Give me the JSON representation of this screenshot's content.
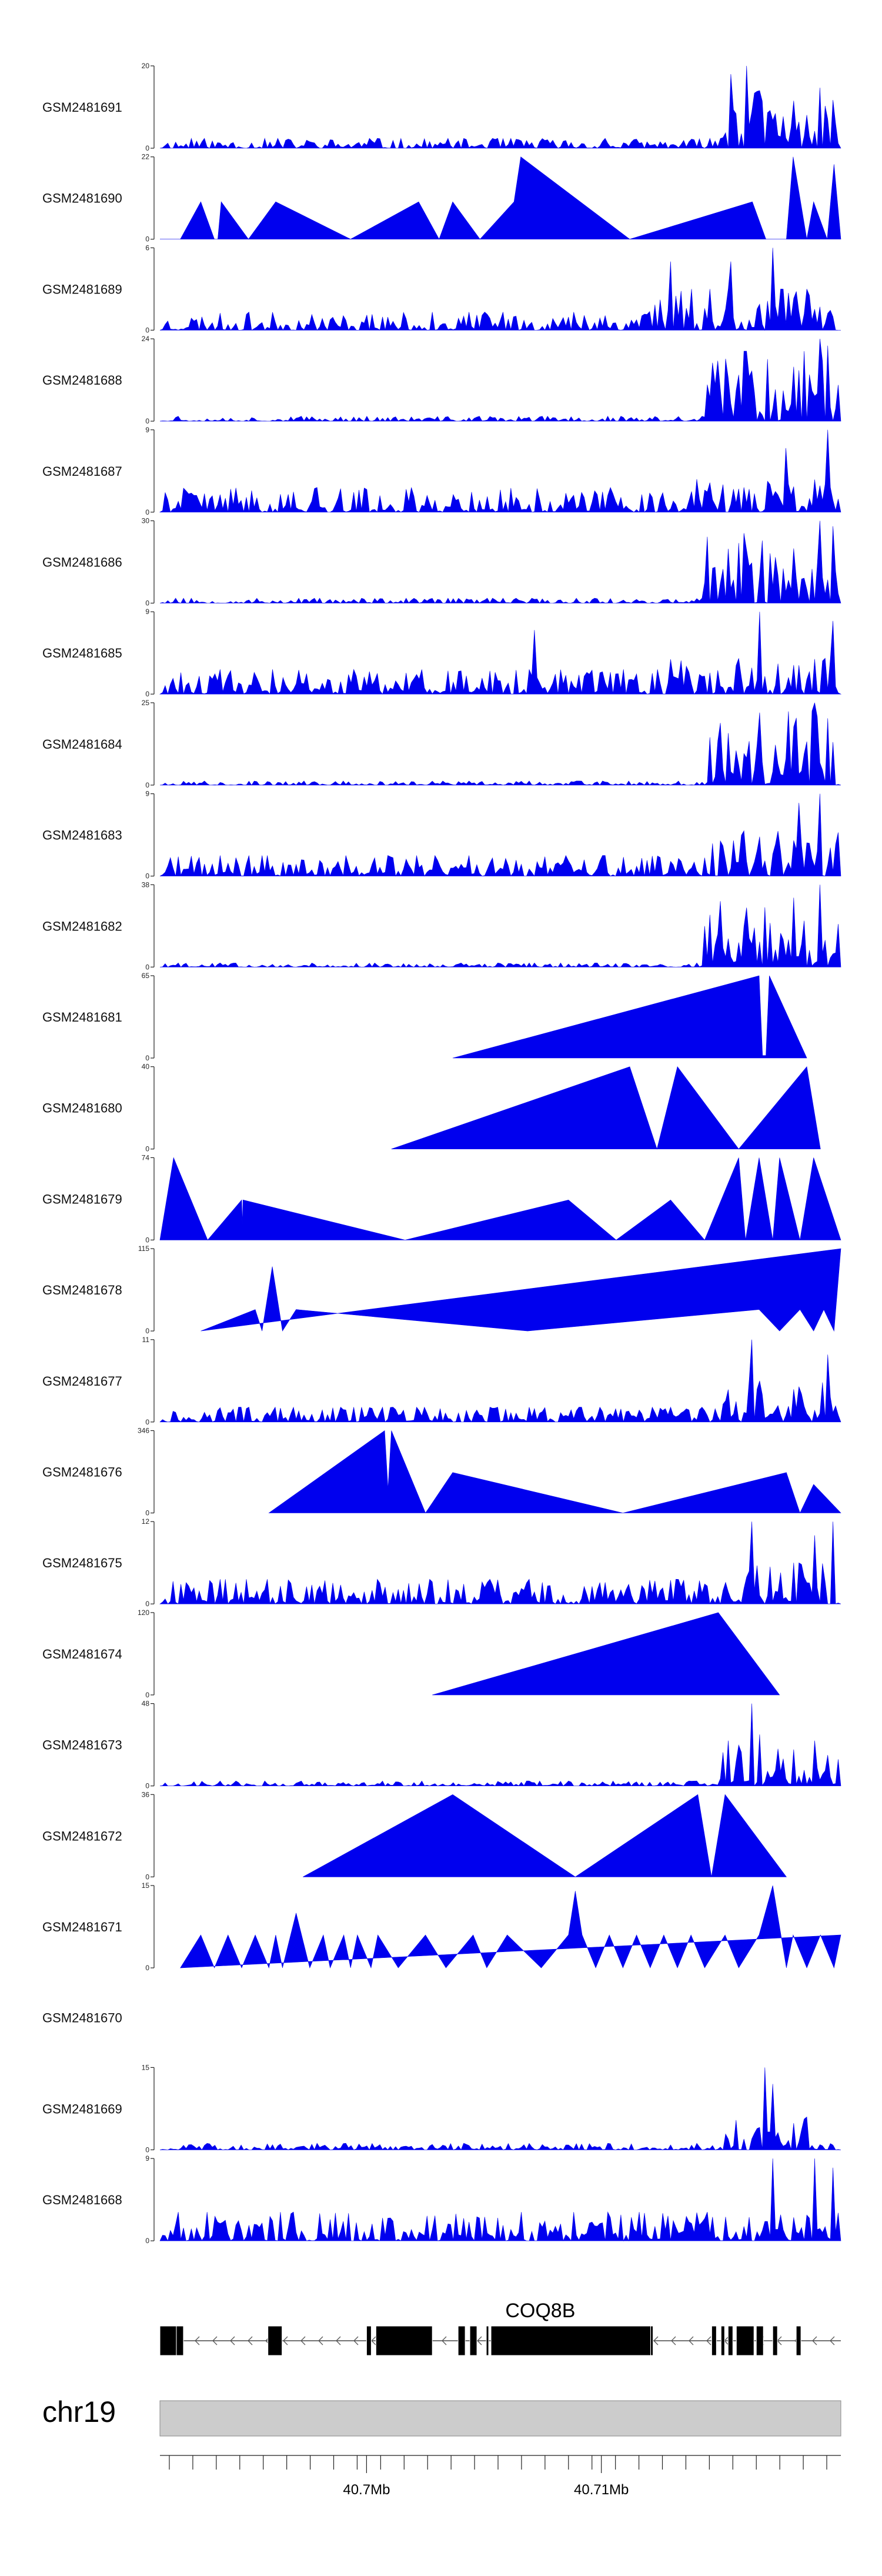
{
  "chart_data": {
    "type": "area",
    "title": "",
    "x_range": [
      40688000,
      40717000
    ],
    "tracks": [
      {
        "name": "GSM2481691",
        "ymax": 20,
        "style": "dense",
        "seed": 11,
        "base": 0.12,
        "hot": [
          [
            0.82,
            1.0,
            0.75
          ]
        ],
        "peaks": [
          [
            0.86,
            20
          ],
          [
            0.84,
            18
          ],
          [
            0.88,
            14
          ]
        ]
      },
      {
        "name": "GSM2481690",
        "ymax": 22,
        "style": "sparse",
        "points": [
          [
            0,
            0
          ],
          [
            0.03,
            0
          ],
          [
            0.06,
            10
          ],
          [
            0.08,
            0
          ],
          [
            0.085,
            0
          ],
          [
            0.09,
            10
          ],
          [
            0.13,
            0
          ],
          [
            0.17,
            10
          ],
          [
            0.28,
            0
          ],
          [
            0.38,
            10
          ],
          [
            0.41,
            0
          ],
          [
            0.43,
            10
          ],
          [
            0.47,
            0
          ],
          [
            0.52,
            10
          ],
          [
            0.53,
            22
          ],
          [
            0.69,
            0
          ],
          [
            0.87,
            10
          ],
          [
            0.89,
            0
          ],
          [
            0.92,
            0
          ],
          [
            0.93,
            22
          ],
          [
            0.95,
            0
          ],
          [
            0.96,
            10
          ],
          [
            0.98,
            0
          ],
          [
            0.99,
            20
          ],
          [
            1.0,
            0
          ]
        ]
      },
      {
        "name": "GSM2481689",
        "ymax": 6,
        "style": "dense",
        "seed": 23,
        "base": 0.22,
        "hot": [
          [
            0.7,
            1.0,
            0.5
          ]
        ],
        "peaks": [
          [
            0.9,
            6
          ],
          [
            0.75,
            5
          ],
          [
            0.84,
            5
          ]
        ]
      },
      {
        "name": "GSM2481688",
        "ymax": 24,
        "style": "dense",
        "seed": 37,
        "base": 0.06,
        "hot": [
          [
            0.8,
            1.0,
            0.85
          ]
        ],
        "peaks": [
          [
            0.97,
            24
          ],
          [
            0.98,
            22
          ]
        ]
      },
      {
        "name": "GSM2481687",
        "ymax": 9,
        "style": "dense",
        "seed": 41,
        "base": 0.3,
        "hot": [
          [
            0.75,
            1.0,
            0.4
          ]
        ],
        "peaks": [
          [
            0.98,
            9
          ],
          [
            0.92,
            7
          ]
        ]
      },
      {
        "name": "GSM2481686",
        "ymax": 30,
        "style": "dense",
        "seed": 53,
        "base": 0.06,
        "hot": [
          [
            0.8,
            1.0,
            0.85
          ]
        ],
        "peaks": [
          [
            0.97,
            30
          ],
          [
            0.99,
            28
          ]
        ]
      },
      {
        "name": "GSM2481685",
        "ymax": 9,
        "style": "dense",
        "seed": 61,
        "base": 0.3,
        "hot": [
          [
            0.75,
            1.0,
            0.45
          ]
        ],
        "peaks": [
          [
            0.88,
            9
          ],
          [
            0.55,
            7
          ],
          [
            0.99,
            8
          ]
        ]
      },
      {
        "name": "GSM2481684",
        "ymax": 25,
        "style": "dense",
        "seed": 67,
        "base": 0.05,
        "hot": [
          [
            0.8,
            1.0,
            0.9
          ]
        ],
        "peaks": [
          [
            0.96,
            25
          ],
          [
            0.88,
            22
          ]
        ]
      },
      {
        "name": "GSM2481683",
        "ymax": 9,
        "style": "dense",
        "seed": 71,
        "base": 0.25,
        "hot": [
          [
            0.8,
            1.0,
            0.55
          ]
        ],
        "peaks": [
          [
            0.97,
            9
          ],
          [
            0.94,
            8
          ]
        ]
      },
      {
        "name": "GSM2481682",
        "ymax": 38,
        "style": "dense",
        "seed": 79,
        "base": 0.05,
        "hot": [
          [
            0.8,
            1.0,
            0.8
          ]
        ],
        "peaks": [
          [
            0.97,
            38
          ],
          [
            0.93,
            32
          ]
        ]
      },
      {
        "name": "GSM2481681",
        "ymax": 65,
        "style": "sparse",
        "points": [
          [
            0.43,
            0
          ],
          [
            0.88,
            65
          ],
          [
            0.885,
            2
          ],
          [
            0.89,
            2
          ],
          [
            0.895,
            65
          ],
          [
            0.95,
            0
          ]
        ]
      },
      {
        "name": "GSM2481680",
        "ymax": 40,
        "style": "sparse",
        "points": [
          [
            0.34,
            0
          ],
          [
            0.69,
            40
          ],
          [
            0.73,
            0
          ],
          [
            0.76,
            40
          ],
          [
            0.85,
            0
          ],
          [
            0.95,
            40
          ],
          [
            0.97,
            0
          ]
        ]
      },
      {
        "name": "GSM2481679",
        "ymax": 74,
        "style": "sparse",
        "points": [
          [
            0,
            0
          ],
          [
            0.02,
            74
          ],
          [
            0.07,
            0
          ],
          [
            0.12,
            36
          ],
          [
            0.121,
            15
          ],
          [
            0.122,
            36
          ],
          [
            0.36,
            0
          ],
          [
            0.6,
            36
          ],
          [
            0.67,
            0
          ],
          [
            0.75,
            36
          ],
          [
            0.8,
            0
          ],
          [
            0.85,
            74
          ],
          [
            0.86,
            0
          ],
          [
            0.88,
            74
          ],
          [
            0.9,
            0
          ],
          [
            0.91,
            74
          ],
          [
            0.94,
            0
          ],
          [
            0.96,
            74
          ],
          [
            1.0,
            0
          ]
        ]
      },
      {
        "name": "GSM2481678",
        "ymax": 115,
        "style": "sparse",
        "points": [
          [
            0.06,
            0
          ],
          [
            0.14,
            30
          ],
          [
            0.15,
            0
          ],
          [
            0.165,
            90
          ],
          [
            0.18,
            0
          ],
          [
            0.2,
            30
          ],
          [
            0.54,
            0
          ],
          [
            0.88,
            30
          ],
          [
            0.91,
            0
          ],
          [
            0.94,
            30
          ],
          [
            0.96,
            0
          ],
          [
            0.975,
            30
          ],
          [
            0.99,
            0
          ],
          [
            1.0,
            115
          ]
        ]
      },
      {
        "name": "GSM2481677",
        "ymax": 11,
        "style": "dense",
        "seed": 97,
        "base": 0.18,
        "hot": [
          [
            0.82,
            1.0,
            0.5
          ]
        ],
        "peaks": [
          [
            0.87,
            11
          ],
          [
            0.98,
            9
          ]
        ]
      },
      {
        "name": "GSM2481676",
        "ymax": 346,
        "style": "sparse",
        "points": [
          [
            0.16,
            0
          ],
          [
            0.33,
            346
          ],
          [
            0.335,
            100
          ],
          [
            0.34,
            346
          ],
          [
            0.39,
            0
          ],
          [
            0.43,
            170
          ],
          [
            0.68,
            0
          ],
          [
            0.92,
            170
          ],
          [
            0.94,
            0
          ],
          [
            0.96,
            120
          ],
          [
            1.0,
            0
          ]
        ]
      },
      {
        "name": "GSM2481675",
        "ymax": 12,
        "style": "dense",
        "seed": 109,
        "base": 0.3,
        "hot": [
          [
            0.85,
            1.0,
            0.5
          ]
        ],
        "peaks": [
          [
            0.87,
            12
          ],
          [
            0.99,
            12
          ],
          [
            0.96,
            10
          ]
        ]
      },
      {
        "name": "GSM2481674",
        "ymax": 120,
        "style": "sparse",
        "points": [
          [
            0.4,
            0
          ],
          [
            0.82,
            120
          ],
          [
            0.91,
            0
          ]
        ]
      },
      {
        "name": "GSM2481673",
        "ymax": 48,
        "style": "dense",
        "seed": 127,
        "base": 0.06,
        "hot": [
          [
            0.82,
            1.0,
            0.55
          ]
        ],
        "peaks": [
          [
            0.87,
            48
          ],
          [
            0.88,
            30
          ]
        ]
      },
      {
        "name": "GSM2481672",
        "ymax": 36,
        "style": "sparse",
        "points": [
          [
            0.21,
            0
          ],
          [
            0.43,
            36
          ],
          [
            0.61,
            0
          ],
          [
            0.79,
            36
          ],
          [
            0.81,
            0
          ],
          [
            0.83,
            36
          ],
          [
            0.92,
            0
          ]
        ]
      },
      {
        "name": "GSM2481671",
        "ymax": 15,
        "style": "sparse",
        "points": [
          [
            0.03,
            0
          ],
          [
            0.06,
            6
          ],
          [
            0.08,
            0
          ],
          [
            0.1,
            6
          ],
          [
            0.12,
            0
          ],
          [
            0.14,
            6
          ],
          [
            0.16,
            0
          ],
          [
            0.17,
            6
          ],
          [
            0.18,
            0
          ],
          [
            0.2,
            10
          ],
          [
            0.22,
            0
          ],
          [
            0.24,
            6
          ],
          [
            0.25,
            0
          ],
          [
            0.27,
            6
          ],
          [
            0.28,
            0
          ],
          [
            0.29,
            6
          ],
          [
            0.31,
            0
          ],
          [
            0.32,
            6
          ],
          [
            0.35,
            0
          ],
          [
            0.39,
            6
          ],
          [
            0.42,
            0
          ],
          [
            0.46,
            6
          ],
          [
            0.48,
            0
          ],
          [
            0.51,
            6
          ],
          [
            0.56,
            0
          ],
          [
            0.6,
            6
          ],
          [
            0.61,
            14
          ],
          [
            0.62,
            6
          ],
          [
            0.64,
            0
          ],
          [
            0.66,
            6
          ],
          [
            0.68,
            0
          ],
          [
            0.7,
            6
          ],
          [
            0.72,
            0
          ],
          [
            0.74,
            6
          ],
          [
            0.76,
            0
          ],
          [
            0.78,
            6
          ],
          [
            0.8,
            0
          ],
          [
            0.83,
            6
          ],
          [
            0.85,
            0
          ],
          [
            0.88,
            6
          ],
          [
            0.9,
            15
          ],
          [
            0.92,
            0
          ],
          [
            0.93,
            6
          ],
          [
            0.95,
            0
          ],
          [
            0.97,
            6
          ],
          [
            0.99,
            0
          ],
          [
            1.0,
            6
          ]
        ]
      },
      {
        "name": "GSM2481670",
        "ymax": null,
        "style": "empty"
      },
      {
        "name": "GSM2481669",
        "ymax": 15,
        "style": "dense",
        "seed": 151,
        "base": 0.08,
        "hot": [
          [
            0.82,
            0.95,
            0.4
          ]
        ],
        "peaks": [
          [
            0.89,
            15
          ],
          [
            0.9,
            12
          ]
        ]
      },
      {
        "name": "GSM2481668",
        "ymax": 9,
        "style": "dense",
        "seed": 163,
        "base": 0.35,
        "hot": [],
        "peaks": [
          [
            0.9,
            9
          ],
          [
            0.96,
            9
          ],
          [
            0.99,
            8
          ]
        ]
      }
    ],
    "gene": {
      "name": "COQ8B",
      "strand": "-",
      "start": 40688000,
      "end": 40717000,
      "exons": [
        [
          40688000,
          40688700
        ],
        [
          40688700,
          40689000
        ],
        [
          40692600,
          40693200
        ],
        [
          40696800,
          40697000
        ],
        [
          40697200,
          40699600
        ],
        [
          40700700,
          40701000
        ],
        [
          40701200,
          40701500
        ],
        [
          40701900,
          40702000
        ],
        [
          40702100,
          40708900
        ],
        [
          40708900,
          40709000
        ],
        [
          40711500,
          40711700
        ],
        [
          40711900,
          40712050
        ],
        [
          40712200,
          40712400
        ],
        [
          40712550,
          40713300
        ],
        [
          40713400,
          40713700
        ],
        [
          40714100,
          40714300
        ],
        [
          40715100,
          40715300
        ]
      ]
    },
    "chromosome": "chr19",
    "axis": {
      "ticks": [
        40688400,
        40689400,
        40690400,
        40691400,
        40692400,
        40693400,
        40694400,
        40695400,
        40696400,
        40697400,
        40698400,
        40699400,
        40700400,
        40701400,
        40702400,
        40703400,
        40704400,
        40705400,
        40706400,
        40707400,
        40708400,
        40709400,
        40710400,
        40711400,
        40712400,
        40713400,
        40714400,
        40715400,
        40716400
      ],
      "labels": [
        {
          "pos": 40696800,
          "text": "40.7Mb"
        },
        {
          "pos": 40706800,
          "text": "40.71Mb"
        }
      ]
    }
  }
}
